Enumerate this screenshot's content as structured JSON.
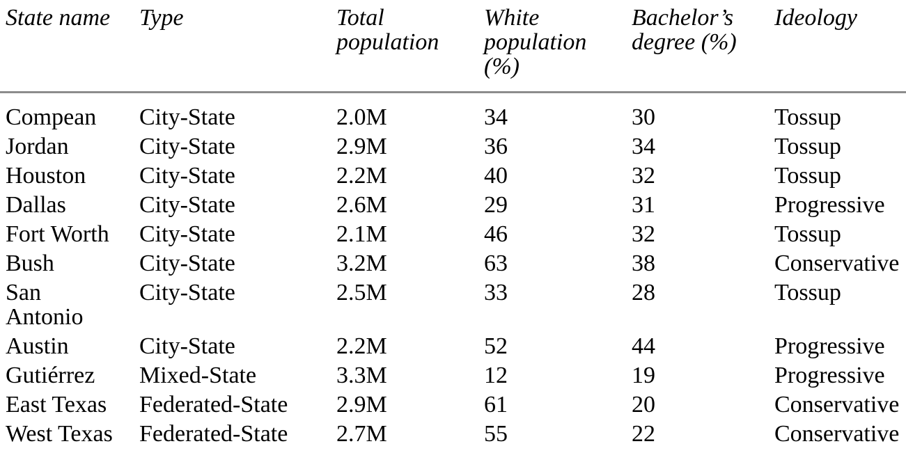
{
  "colors": {
    "background": "#ffffff",
    "text": "#000000",
    "header_rule": "#8c8c8c"
  },
  "table": {
    "columns": [
      {
        "label": "State name"
      },
      {
        "label": "Type"
      },
      {
        "label": "Total population"
      },
      {
        "label": "White population (%)"
      },
      {
        "label": "Bachelor’s degree (%)"
      },
      {
        "label": "Ideology"
      }
    ],
    "rows": [
      {
        "state_name": "Compean",
        "type": "City-State",
        "total_population": "2.0M",
        "white_population_pct": "34",
        "bachelors_degree_pct": "30",
        "ideology": "Tossup"
      },
      {
        "state_name": "Jordan",
        "type": "City-State",
        "total_population": "2.9M",
        "white_population_pct": "36",
        "bachelors_degree_pct": "34",
        "ideology": "Tossup"
      },
      {
        "state_name": "Houston",
        "type": "City-State",
        "total_population": "2.2M",
        "white_population_pct": "40",
        "bachelors_degree_pct": "32",
        "ideology": "Tossup"
      },
      {
        "state_name": "Dallas",
        "type": "City-State",
        "total_population": "2.6M",
        "white_population_pct": "29",
        "bachelors_degree_pct": "31",
        "ideology": "Progressive"
      },
      {
        "state_name": "Fort Worth",
        "type": "City-State",
        "total_population": "2.1M",
        "white_population_pct": "46",
        "bachelors_degree_pct": "32",
        "ideology": "Tossup"
      },
      {
        "state_name": "Bush",
        "type": "City-State",
        "total_population": "3.2M",
        "white_population_pct": "63",
        "bachelors_degree_pct": "38",
        "ideology": "Conservative"
      },
      {
        "state_name": "San Antonio",
        "type": "City-State",
        "total_population": "2.5M",
        "white_population_pct": "33",
        "bachelors_degree_pct": "28",
        "ideology": "Tossup"
      },
      {
        "state_name": "Austin",
        "type": "City-State",
        "total_population": "2.2M",
        "white_population_pct": "52",
        "bachelors_degree_pct": "44",
        "ideology": "Progressive"
      },
      {
        "state_name": "Gutiérrez",
        "type": "Mixed-State",
        "total_population": "3.3M",
        "white_population_pct": "12",
        "bachelors_degree_pct": "19",
        "ideology": "Progressive"
      },
      {
        "state_name": "East Texas",
        "type": "Federated-State",
        "total_population": "2.9M",
        "white_population_pct": "61",
        "bachelors_degree_pct": "20",
        "ideology": "Conservative"
      },
      {
        "state_name": "West Texas",
        "type": "Federated-State",
        "total_population": "2.7M",
        "white_population_pct": "55",
        "bachelors_degree_pct": "22",
        "ideology": "Conservative"
      }
    ]
  }
}
